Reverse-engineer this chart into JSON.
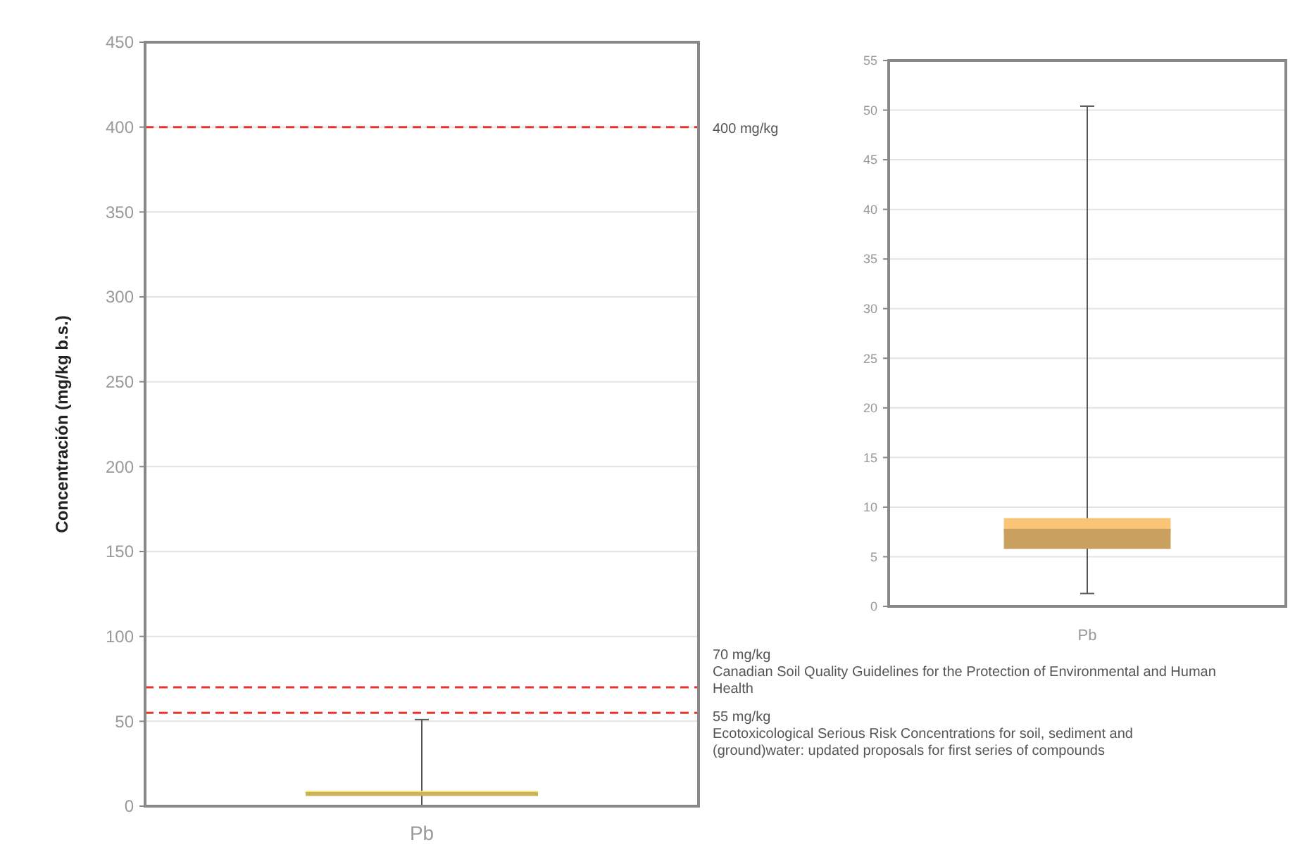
{
  "chart_data": [
    {
      "type": "box",
      "ylabel": "Concentración (mg/kg b.s.)",
      "categories": [
        "Pb"
      ],
      "ylim": [
        0,
        450
      ],
      "yticks": [
        0,
        50,
        100,
        150,
        200,
        250,
        300,
        350,
        400,
        450
      ],
      "grid": "y",
      "series": [
        {
          "color": "#c8b45a",
          "boxes": [
            {
              "low": 0,
              "q1": 6,
              "median": 7.7,
              "q3": 9,
              "high": 51
            }
          ]
        }
      ],
      "ref_lines": [
        {
          "axis": "y",
          "value": 400,
          "label": "400 mg/kg",
          "color": "#e8322d",
          "line_style": "dashed"
        },
        {
          "axis": "y",
          "value": 70,
          "label": "70 mg/kg\nCanadian Soil Quality Guidelines for the Protection of Environmental and Human Health",
          "color": "#e8322d",
          "line_style": "dashed"
        },
        {
          "axis": "y",
          "value": 55,
          "label": "55 mg/kg\nEcotoxicological Serious Risk Concentrations for soil, sediment and (ground)water: updated proposals for first series of compounds",
          "color": "#e8322d",
          "line_style": "dashed"
        }
      ]
    },
    {
      "type": "box",
      "categories": [
        "Pb"
      ],
      "ylim": [
        0,
        55
      ],
      "yticks": [
        0,
        5,
        10,
        15,
        20,
        25,
        30,
        35,
        40,
        45,
        50,
        55
      ],
      "grid": "y",
      "series": [
        {
          "color": "#c9a060",
          "boxes": [
            {
              "low": 1.3,
              "q1": 5.8,
              "median": 7.7,
              "q3": 8.9,
              "high": 50.4
            }
          ]
        }
      ]
    }
  ]
}
